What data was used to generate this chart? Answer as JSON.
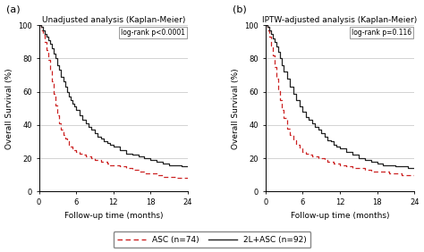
{
  "panel_a_title": "Unadjusted analysis (Kaplan-Meier)",
  "panel_b_title": "IPTW-adjusted analysis (Kaplan-Meier)",
  "panel_a_label": "(a)",
  "panel_b_label": "(b)",
  "logrank_a": "log-rank p<0.0001",
  "logrank_b": "log-rank p=0.116",
  "xlabel": "Follow-up time (months)",
  "ylabel": "Overall Survival (%)",
  "xlim": [
    0,
    24
  ],
  "ylim": [
    0,
    100
  ],
  "xticks": [
    0,
    6,
    12,
    18,
    24
  ],
  "yticks": [
    0,
    20,
    40,
    60,
    80,
    100
  ],
  "legend_asc": "ASC (n=74)",
  "legend_2lasc": "2L+ASC (n=92)",
  "asc_color": "#cc2222",
  "twolasc_color": "#222222",
  "background_color": "#ffffff",
  "grid_color": "#cccccc",
  "panel_a_asc_t": [
    0,
    0.3,
    0.6,
    0.9,
    1.2,
    1.5,
    1.8,
    2.1,
    2.4,
    2.7,
    3.0,
    3.3,
    3.6,
    3.9,
    4.2,
    4.5,
    4.8,
    5.1,
    5.4,
    5.7,
    6.0,
    6.5,
    7.0,
    7.5,
    8.0,
    8.5,
    9.0,
    9.5,
    10.0,
    10.5,
    11.0,
    11.5,
    12.0,
    13.0,
    14.0,
    15.0,
    16.0,
    17.0,
    18.0,
    19.0,
    20.0,
    21.0,
    22.0,
    23.0,
    24.0
  ],
  "panel_a_asc_s": [
    100,
    97,
    94,
    90,
    85,
    79,
    73,
    66,
    59,
    52,
    46,
    41,
    37,
    34,
    32,
    30,
    28,
    27,
    26,
    25,
    24,
    23,
    22,
    21,
    21,
    20,
    19,
    19,
    18,
    18,
    17,
    16,
    16,
    15,
    14,
    13,
    12,
    11,
    11,
    10,
    9,
    9,
    8,
    8,
    8
  ],
  "panel_a_2lasc_t": [
    0,
    0.3,
    0.6,
    0.9,
    1.2,
    1.5,
    1.8,
    2.1,
    2.4,
    2.7,
    3.0,
    3.3,
    3.6,
    3.9,
    4.2,
    4.5,
    4.8,
    5.1,
    5.4,
    5.7,
    6.0,
    6.5,
    7.0,
    7.5,
    8.0,
    8.5,
    9.0,
    9.5,
    10.0,
    10.5,
    11.0,
    11.5,
    12.0,
    13.0,
    14.0,
    15.0,
    16.0,
    17.0,
    18.0,
    19.0,
    20.0,
    21.0,
    22.0,
    23.0,
    24.0
  ],
  "panel_a_2lasc_s": [
    100,
    99,
    97,
    95,
    93,
    91,
    89,
    86,
    83,
    80,
    76,
    73,
    69,
    66,
    63,
    60,
    57,
    55,
    53,
    51,
    49,
    46,
    43,
    41,
    39,
    37,
    35,
    33,
    32,
    30,
    29,
    28,
    27,
    25,
    23,
    22,
    21,
    20,
    19,
    18,
    17,
    16,
    16,
    15,
    15
  ],
  "panel_b_asc_t": [
    0,
    0.3,
    0.6,
    0.9,
    1.2,
    1.5,
    1.8,
    2.1,
    2.4,
    2.7,
    3.0,
    3.5,
    4.0,
    4.5,
    5.0,
    5.5,
    6.0,
    6.5,
    7.0,
    7.5,
    8.0,
    8.5,
    9.0,
    9.5,
    10.0,
    10.5,
    11.0,
    11.5,
    12.0,
    13.0,
    14.0,
    15.0,
    16.0,
    17.0,
    18.0,
    19.0,
    20.0,
    21.0,
    22.0,
    23.0,
    24.0
  ],
  "panel_b_asc_s": [
    100,
    97,
    93,
    88,
    82,
    75,
    68,
    61,
    55,
    49,
    44,
    38,
    34,
    31,
    28,
    26,
    24,
    23,
    22,
    21,
    21,
    20,
    20,
    19,
    18,
    18,
    17,
    17,
    16,
    15,
    14,
    14,
    13,
    12,
    12,
    12,
    11,
    11,
    10,
    10,
    10
  ],
  "panel_b_2lasc_t": [
    0,
    0.3,
    0.6,
    0.9,
    1.2,
    1.5,
    1.8,
    2.1,
    2.4,
    2.7,
    3.0,
    3.5,
    4.0,
    4.5,
    5.0,
    5.5,
    6.0,
    6.5,
    7.0,
    7.5,
    8.0,
    8.5,
    9.0,
    9.5,
    10.0,
    10.5,
    11.0,
    11.5,
    12.0,
    13.0,
    14.0,
    15.0,
    16.0,
    17.0,
    18.0,
    19.0,
    20.0,
    21.0,
    22.0,
    23.0,
    24.0
  ],
  "panel_b_2lasc_s": [
    100,
    99,
    97,
    95,
    92,
    90,
    87,
    84,
    80,
    76,
    72,
    68,
    63,
    59,
    55,
    51,
    48,
    45,
    43,
    41,
    39,
    37,
    35,
    33,
    31,
    30,
    28,
    27,
    26,
    24,
    22,
    20,
    19,
    18,
    17,
    16,
    16,
    15,
    15,
    14,
    14
  ]
}
